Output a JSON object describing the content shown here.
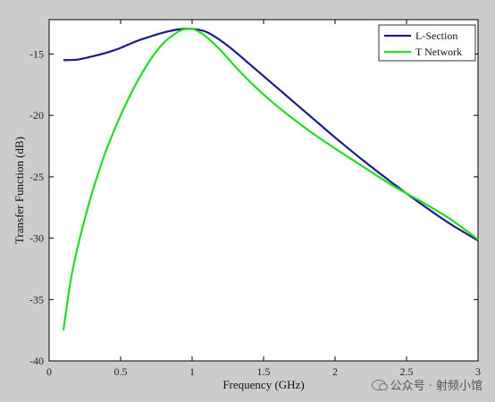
{
  "chart_data": {
    "type": "line",
    "title": "",
    "xlabel": "Frequency (GHz)",
    "ylabel": "Transfer Function (dB)",
    "xlim": [
      0,
      3
    ],
    "ylim": [
      -40,
      -12.2
    ],
    "xticks": [
      0,
      0.5,
      1,
      1.5,
      2,
      2.5,
      3
    ],
    "xtick_labels": [
      "0",
      "0.5",
      "1",
      "1.5",
      "2",
      "2.5",
      "3"
    ],
    "yticks": [
      -40,
      -35,
      -30,
      -25,
      -20,
      -15
    ],
    "ytick_labels": [
      "-40",
      "-35",
      "-30",
      "-25",
      "-20",
      "-15"
    ],
    "grid": false,
    "legend_position": "top-right",
    "series": [
      {
        "name": "L-Section",
        "color": "#1a1a8c",
        "x": [
          0.1,
          0.2,
          0.3,
          0.4,
          0.5,
          0.6,
          0.7,
          0.8,
          0.9,
          1.0,
          1.1,
          1.2,
          1.3,
          1.4,
          1.5,
          1.6,
          1.7,
          1.8,
          1.9,
          2.0,
          2.2,
          2.4,
          2.6,
          2.8,
          3.0
        ],
        "y": [
          -15.5,
          -15.45,
          -15.2,
          -14.9,
          -14.5,
          -14.0,
          -13.6,
          -13.25,
          -13.0,
          -12.95,
          -13.2,
          -13.9,
          -14.8,
          -15.8,
          -16.8,
          -17.8,
          -18.8,
          -19.8,
          -20.8,
          -21.8,
          -23.7,
          -25.5,
          -27.2,
          -28.8,
          -30.2
        ]
      },
      {
        "name": "T Network",
        "color": "#22dd22",
        "x": [
          0.1,
          0.15,
          0.2,
          0.25,
          0.3,
          0.35,
          0.4,
          0.5,
          0.6,
          0.7,
          0.8,
          0.9,
          0.95,
          1.0,
          1.05,
          1.1,
          1.2,
          1.3,
          1.4,
          1.5,
          1.6,
          1.8,
          2.0,
          2.2,
          2.4,
          2.6,
          2.8,
          3.0
        ],
        "y": [
          -37.5,
          -33.5,
          -30.7,
          -28.4,
          -26.3,
          -24.5,
          -22.8,
          -20.0,
          -17.6,
          -15.6,
          -14.1,
          -13.2,
          -12.98,
          -12.95,
          -13.2,
          -13.6,
          -14.7,
          -16.0,
          -17.2,
          -18.3,
          -19.3,
          -21.1,
          -22.7,
          -24.2,
          -25.7,
          -27.0,
          -28.4,
          -30.1
        ]
      }
    ]
  },
  "watermark": {
    "text": "公众号 · 射频小馆",
    "icon": "wechat-icon"
  }
}
